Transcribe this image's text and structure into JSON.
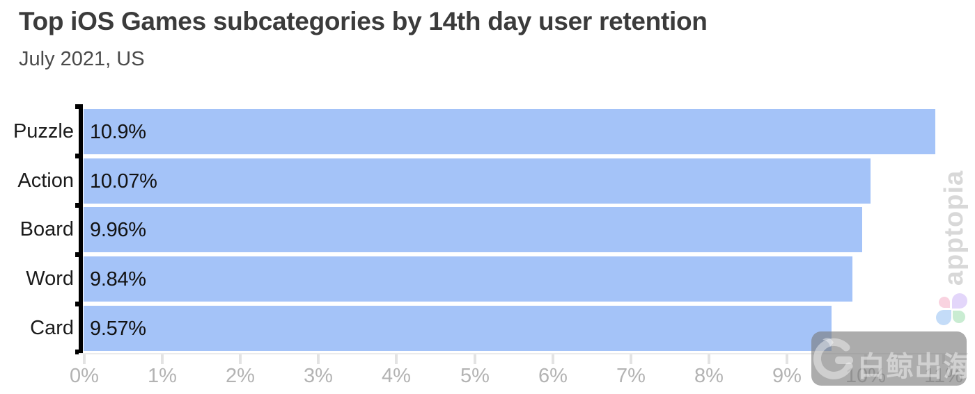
{
  "header": {
    "title": "Top iOS Games subcategories by 14th day user retention",
    "subtitle": "July 2021, US"
  },
  "chart_data": {
    "type": "bar",
    "orientation": "horizontal",
    "title": "Top iOS Games subcategories by 14th day user retention",
    "subtitle": "July 2021, US",
    "categories": [
      "Puzzle",
      "Action",
      "Board",
      "Word",
      "Card"
    ],
    "values": [
      10.9,
      10.07,
      9.96,
      9.84,
      9.57
    ],
    "value_labels": [
      "10.9%",
      "10.07%",
      "9.96%",
      "9.84%",
      "9.57%"
    ],
    "xlabel": "",
    "ylabel": "",
    "xlim": [
      0,
      11
    ],
    "x_tick_labels": [
      "0%",
      "1%",
      "2%",
      "3%",
      "4%",
      "5%",
      "6%",
      "7%",
      "8%",
      "9%",
      "10%",
      "11%"
    ],
    "grid": false,
    "legend": false,
    "bar_color": "#a4c3f8",
    "value_label_position": "inside-left",
    "axis_color": "#000000",
    "tick_color": "#e3e3e3",
    "tick_label_color": "#b3b3b3"
  },
  "watermarks": {
    "apptopia_text": "apptopia",
    "apptopia_text_color": "#d8d8d8",
    "apptopia_logo_colors": {
      "top_left": "#f9d3e0",
      "top_right": "#e3d6fa",
      "bottom_left": "#c4dcf8",
      "bottom_right": "#c9ecd2"
    },
    "badge_text": "白鲸出海"
  }
}
